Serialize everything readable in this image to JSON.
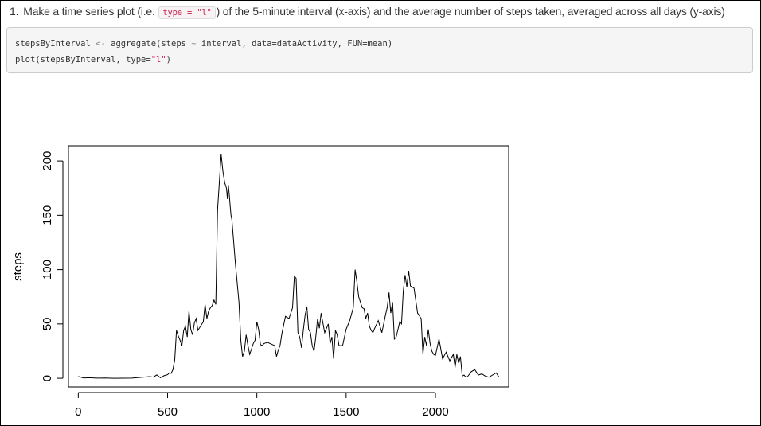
{
  "instruction": {
    "number": "1.",
    "text_before": "Make a time series plot (i.e.",
    "code": "type = \"l\"",
    "text_after": ") of the 5-minute interval (x-axis) and the average number of steps taken, averaged across all days (y-axis)"
  },
  "code_block": {
    "line1_a": "stepsByInterval ",
    "line1_op": "<-",
    "line1_b": " aggregate(steps ",
    "line1_tilde": "~",
    "line1_c": " interval, data=dataActivity, FUN=mean)",
    "line2_a": "plot(stepsByInterval, type=",
    "line2_str": "\"l\"",
    "line2_b": ")"
  },
  "chart_data": {
    "type": "line",
    "xlabel": "",
    "ylabel": "steps",
    "xlim": [
      -55,
      2410
    ],
    "ylim": [
      -8,
      214
    ],
    "xticks": [
      "0",
      "500",
      "1000",
      "1500",
      "2000"
    ],
    "yticks": [
      "0",
      "50",
      "100",
      "150",
      "200"
    ],
    "series": [
      {
        "x": [
          0,
          30,
          60,
          100,
          150,
          200,
          300,
          400,
          420,
          440,
          460,
          480,
          500,
          510,
          520,
          530,
          540,
          550,
          560,
          570,
          580,
          590,
          600,
          610,
          620,
          630,
          640,
          650,
          660,
          670,
          700,
          710,
          720,
          730,
          740,
          750,
          760,
          770,
          780,
          800,
          810,
          820,
          830,
          835,
          840,
          845,
          850,
          855,
          860,
          880,
          900,
          910,
          920,
          930,
          940,
          950,
          960,
          980,
          990,
          1000,
          1010,
          1020,
          1030,
          1040,
          1060,
          1100,
          1110,
          1120,
          1130,
          1140,
          1160,
          1180,
          1200,
          1210,
          1220,
          1230,
          1240,
          1250,
          1260,
          1270,
          1280,
          1290,
          1300,
          1310,
          1320,
          1330,
          1340,
          1350,
          1360,
          1380,
          1400,
          1410,
          1420,
          1430,
          1440,
          1450,
          1460,
          1480,
          1500,
          1520,
          1540,
          1550,
          1560,
          1570,
          1580,
          1590,
          1600,
          1610,
          1620,
          1630,
          1640,
          1650,
          1660,
          1680,
          1700,
          1710,
          1720,
          1730,
          1740,
          1750,
          1760,
          1770,
          1780,
          1800,
          1810,
          1820,
          1830,
          1840,
          1850,
          1860,
          1880,
          1900,
          1920,
          1930,
          1940,
          1950,
          1960,
          1970,
          1980,
          1990,
          2000,
          2020,
          2040,
          2060,
          2080,
          2100,
          2110,
          2120,
          2130,
          2140,
          2150,
          2160,
          2170,
          2180,
          2200,
          2220,
          2240,
          2260,
          2280,
          2300,
          2320,
          2340,
          2355
        ],
        "y": [
          1.7,
          0.3,
          0.5,
          0.1,
          0.2,
          0,
          0.1,
          1.5,
          1.1,
          3.1,
          0.5,
          2.3,
          3.3,
          5,
          4.5,
          8,
          17,
          44,
          39,
          35,
          30,
          44,
          48,
          38,
          62,
          45,
          40,
          51,
          55,
          44,
          52,
          68,
          55,
          62,
          65,
          67,
          72,
          68,
          155,
          206,
          190,
          180,
          175,
          165,
          178,
          170,
          160,
          150,
          146,
          105,
          70,
          35,
          20,
          25,
          40,
          30,
          22,
          32,
          35,
          52,
          45,
          31,
          30,
          32,
          33,
          30,
          20,
          26,
          30,
          41,
          57,
          55,
          65,
          94,
          92,
          42,
          38,
          28,
          44,
          58,
          66,
          45,
          42,
          30,
          25,
          38,
          55,
          46,
          60,
          42,
          50,
          32,
          38,
          18,
          44,
          40,
          30,
          30,
          45,
          53,
          65,
          100,
          89,
          75,
          70,
          65,
          64,
          55,
          60,
          48,
          44,
          42,
          46,
          53,
          42,
          50,
          58,
          65,
          79,
          60,
          70,
          36,
          38,
          52,
          50,
          80,
          95,
          84,
          99,
          85,
          83,
          60,
          55,
          22,
          38,
          30,
          45,
          32,
          25,
          22,
          21,
          36,
          18,
          24,
          16,
          22,
          10,
          22,
          14,
          20,
          2,
          3,
          1,
          1.5,
          6,
          8,
          3,
          4,
          2,
          1,
          3,
          5,
          1.2
        ]
      }
    ]
  }
}
